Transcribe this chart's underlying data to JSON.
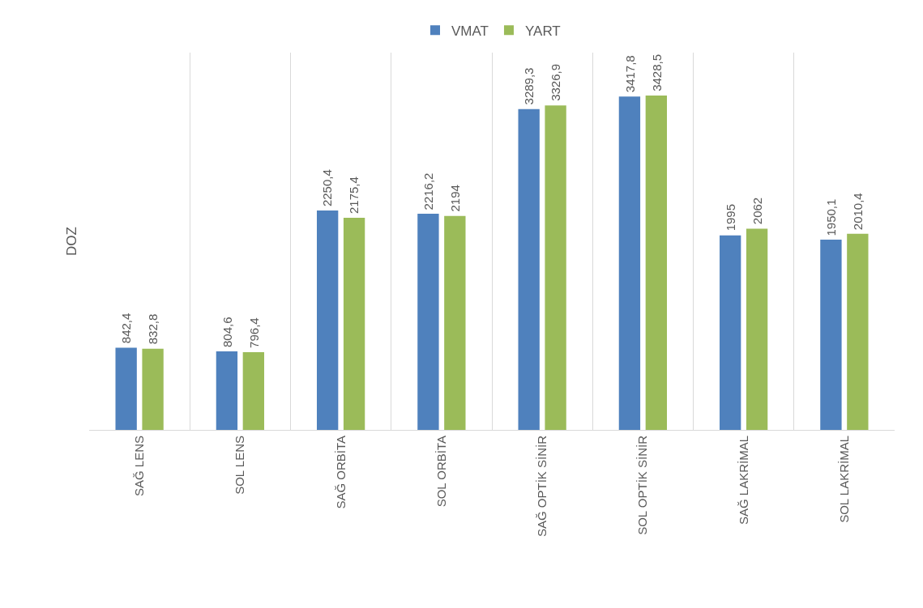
{
  "chart_data": {
    "type": "bar",
    "ylabel": "DOZ",
    "categories": [
      "SAĞ LENS",
      "SOL LENS",
      "SAĞ ORBİTA",
      "SOL ORBİTA",
      "SAĞ OPTİK SİNİR",
      "SOL OPTİK SİNİR",
      "SAĞ LAKRİMAL",
      "SOL LAKRİMAL"
    ],
    "series": [
      {
        "name": "VMAT",
        "color": "#4f81bd",
        "values": [
          842.4,
          804.6,
          2250.4,
          2216.2,
          3289.3,
          3417.8,
          1995,
          1950.1
        ],
        "value_labels": [
          "842,4",
          "804,6",
          "2250,4",
          "2216,2",
          "3289,3",
          "3417,8",
          "1995",
          "1950,1"
        ]
      },
      {
        "name": "YART",
        "color": "#9bbb59",
        "values": [
          832.8,
          796.4,
          2175.4,
          2194,
          3326.9,
          3428.5,
          2062,
          2010.4
        ],
        "value_labels": [
          "832,8",
          "796,4",
          "2175,4",
          "2194",
          "3326,9",
          "3428,5",
          "2062",
          "2010,4"
        ]
      }
    ],
    "grid": "x",
    "legend": "top"
  }
}
